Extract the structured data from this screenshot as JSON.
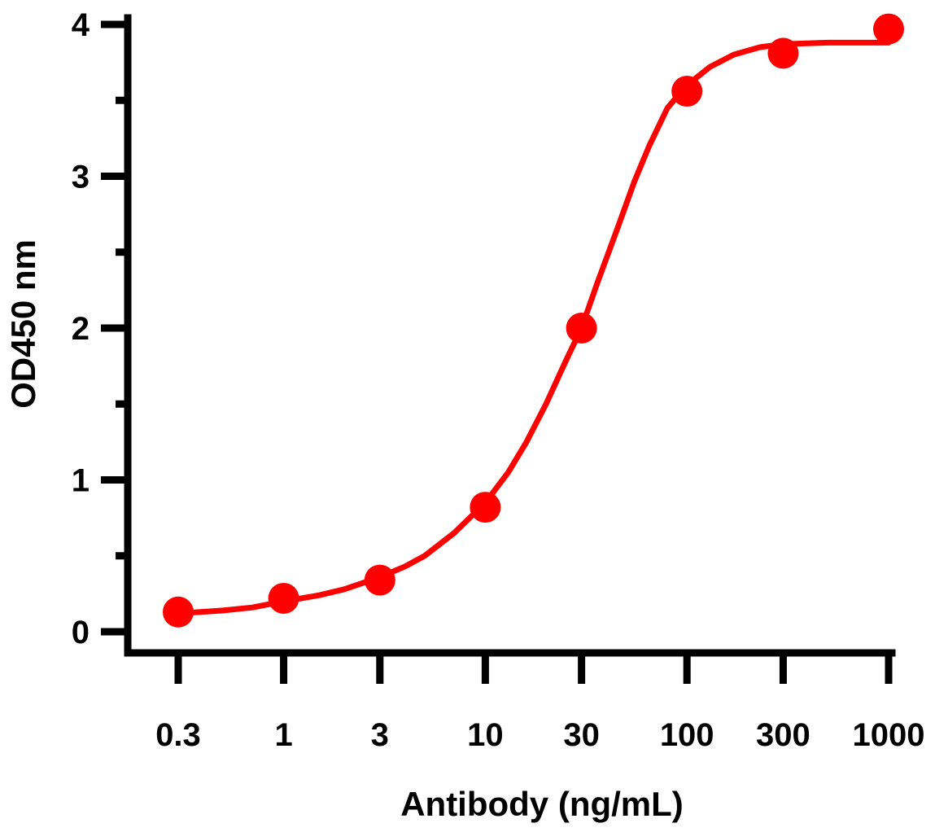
{
  "chart_data": {
    "type": "line",
    "title": "",
    "xlabel": "Antibody (ng/mL)",
    "ylabel": "OD450 nm",
    "x_scale": "log",
    "xlim": [
      0.3,
      1000
    ],
    "ylim": [
      0,
      4
    ],
    "x_ticks": [
      0.3,
      1,
      3,
      10,
      30,
      100,
      300,
      1000
    ],
    "x_tick_labels": [
      "0.3",
      "1",
      "3",
      "10",
      "30",
      "100",
      "300",
      "1000"
    ],
    "y_ticks": [
      0,
      1,
      2,
      3,
      4
    ],
    "y_tick_labels": [
      "0",
      "1",
      "2",
      "3",
      "4"
    ],
    "y_minor_ticks": [
      0.5,
      1.5,
      2.5,
      3.5
    ],
    "grid": false,
    "series": [
      {
        "color": "#ff0000",
        "points": [
          {
            "x": 0.3,
            "y": 0.13
          },
          {
            "x": 1,
            "y": 0.22
          },
          {
            "x": 3,
            "y": 0.34
          },
          {
            "x": 10,
            "y": 0.82
          },
          {
            "x": 30,
            "y": 2.0
          },
          {
            "x": 100,
            "y": 3.56
          },
          {
            "x": 300,
            "y": 3.81
          },
          {
            "x": 1000,
            "y": 3.97
          }
        ],
        "fit_curve": [
          {
            "x": 0.3,
            "y": 0.12
          },
          {
            "x": 0.5,
            "y": 0.14
          },
          {
            "x": 0.7,
            "y": 0.16
          },
          {
            "x": 1,
            "y": 0.2
          },
          {
            "x": 1.5,
            "y": 0.24
          },
          {
            "x": 2,
            "y": 0.28
          },
          {
            "x": 3,
            "y": 0.36
          },
          {
            "x": 4,
            "y": 0.43
          },
          {
            "x": 5,
            "y": 0.5
          },
          {
            "x": 7,
            "y": 0.65
          },
          {
            "x": 10,
            "y": 0.85
          },
          {
            "x": 13,
            "y": 1.05
          },
          {
            "x": 16,
            "y": 1.25
          },
          {
            "x": 20,
            "y": 1.5
          },
          {
            "x": 25,
            "y": 1.78
          },
          {
            "x": 30,
            "y": 2.0
          },
          {
            "x": 36,
            "y": 2.3
          },
          {
            "x": 45,
            "y": 2.65
          },
          {
            "x": 55,
            "y": 2.97
          },
          {
            "x": 65,
            "y": 3.2
          },
          {
            "x": 80,
            "y": 3.45
          },
          {
            "x": 100,
            "y": 3.6
          },
          {
            "x": 130,
            "y": 3.72
          },
          {
            "x": 170,
            "y": 3.8
          },
          {
            "x": 230,
            "y": 3.85
          },
          {
            "x": 300,
            "y": 3.87
          },
          {
            "x": 500,
            "y": 3.88
          },
          {
            "x": 1000,
            "y": 3.88
          }
        ]
      }
    ]
  }
}
